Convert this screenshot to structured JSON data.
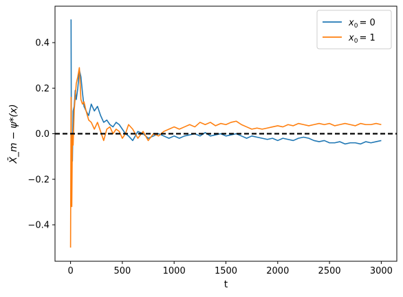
{
  "chart_data": {
    "type": "line",
    "xlabel": "t",
    "ylabel": "X̄_m − ψ*(x)",
    "xlim": [
      -150,
      3150
    ],
    "ylim": [
      -0.56,
      0.56
    ],
    "x_ticks": [
      0,
      500,
      1000,
      1500,
      2000,
      2500,
      3000
    ],
    "x_tick_labels": [
      "0",
      "500",
      "1000",
      "1500",
      "2000",
      "2500",
      "3000"
    ],
    "y_ticks": [
      -0.4,
      -0.2,
      0.0,
      0.2,
      0.4
    ],
    "y_tick_labels": [
      "−0.4",
      "−0.2",
      "0.0",
      "0.2",
      "0.4"
    ],
    "grid": false,
    "legend_position": "top-right",
    "reference_line": {
      "y": 0.0,
      "style": "dashed",
      "color": "#000000"
    },
    "series": [
      {
        "name": "x₀ = 0",
        "legend_label": {
          "var": "x",
          "sub": "0",
          "rest": "= 0"
        },
        "color": "#1f77b4",
        "x": [
          0,
          5,
          8,
          12,
          18,
          25,
          35,
          45,
          55,
          70,
          85,
          100,
          115,
          130,
          150,
          175,
          200,
          230,
          260,
          290,
          320,
          350,
          380,
          410,
          440,
          470,
          500,
          530,
          560,
          600,
          650,
          700,
          750,
          800,
          850,
          900,
          950,
          1000,
          1050,
          1100,
          1150,
          1200,
          1250,
          1300,
          1350,
          1400,
          1450,
          1500,
          1550,
          1600,
          1650,
          1700,
          1750,
          1800,
          1850,
          1900,
          1950,
          2000,
          2050,
          2100,
          2150,
          2200,
          2250,
          2300,
          2350,
          2400,
          2450,
          2500,
          2550,
          2600,
          2650,
          2700,
          2750,
          2800,
          2850,
          2900,
          2950,
          3000
        ],
        "y": [
          0.5,
          0.5,
          -0.1,
          0.0,
          -0.12,
          0.1,
          0.12,
          0.19,
          0.15,
          0.2,
          0.28,
          0.25,
          0.18,
          0.12,
          0.1,
          0.08,
          0.13,
          0.1,
          0.12,
          0.08,
          0.05,
          0.06,
          0.04,
          0.03,
          0.05,
          0.04,
          0.02,
          0.0,
          -0.01,
          -0.03,
          0.01,
          0.0,
          -0.02,
          -0.01,
          0.0,
          -0.01,
          -0.02,
          -0.01,
          -0.02,
          -0.01,
          -0.005,
          0.0,
          -0.01,
          0.005,
          -0.01,
          -0.005,
          0.0,
          -0.01,
          -0.005,
          0.0,
          -0.01,
          -0.02,
          -0.01,
          -0.015,
          -0.02,
          -0.025,
          -0.02,
          -0.03,
          -0.02,
          -0.025,
          -0.03,
          -0.02,
          -0.015,
          -0.02,
          -0.03,
          -0.035,
          -0.03,
          -0.04,
          -0.04,
          -0.035,
          -0.045,
          -0.04,
          -0.04,
          -0.045,
          -0.035,
          -0.04,
          -0.035,
          -0.03
        ]
      },
      {
        "name": "x₀ = 1",
        "legend_label": {
          "var": "x",
          "sub": "0",
          "rest": "= 1"
        },
        "color": "#ff7f0e",
        "x": [
          0,
          5,
          8,
          12,
          18,
          25,
          35,
          45,
          55,
          70,
          85,
          100,
          115,
          130,
          150,
          175,
          200,
          230,
          260,
          290,
          320,
          350,
          380,
          410,
          440,
          470,
          500,
          530,
          560,
          600,
          650,
          700,
          750,
          800,
          850,
          900,
          950,
          1000,
          1050,
          1100,
          1150,
          1200,
          1250,
          1300,
          1350,
          1400,
          1450,
          1500,
          1550,
          1600,
          1650,
          1700,
          1750,
          1800,
          1850,
          1900,
          1950,
          2000,
          2050,
          2100,
          2150,
          2200,
          2250,
          2300,
          2350,
          2400,
          2450,
          2500,
          2550,
          2600,
          2650,
          2700,
          2750,
          2800,
          2850,
          2900,
          2950,
          3000
        ],
        "y": [
          -0.5,
          0.16,
          -0.22,
          -0.32,
          0.0,
          -0.05,
          0.1,
          0.16,
          0.22,
          0.25,
          0.29,
          0.15,
          0.13,
          0.14,
          0.1,
          0.06,
          0.05,
          0.02,
          0.05,
          0.01,
          -0.03,
          0.02,
          0.03,
          0.0,
          0.02,
          0.01,
          -0.02,
          0.0,
          0.04,
          0.02,
          -0.02,
          0.01,
          -0.03,
          0.0,
          -0.01,
          0.01,
          0.02,
          0.03,
          0.02,
          0.03,
          0.04,
          0.03,
          0.05,
          0.04,
          0.05,
          0.035,
          0.045,
          0.04,
          0.05,
          0.055,
          0.04,
          0.03,
          0.02,
          0.025,
          0.02,
          0.025,
          0.03,
          0.035,
          0.03,
          0.04,
          0.035,
          0.045,
          0.04,
          0.035,
          0.04,
          0.045,
          0.04,
          0.045,
          0.035,
          0.04,
          0.045,
          0.04,
          0.035,
          0.045,
          0.04,
          0.04,
          0.045,
          0.04
        ]
      }
    ]
  }
}
